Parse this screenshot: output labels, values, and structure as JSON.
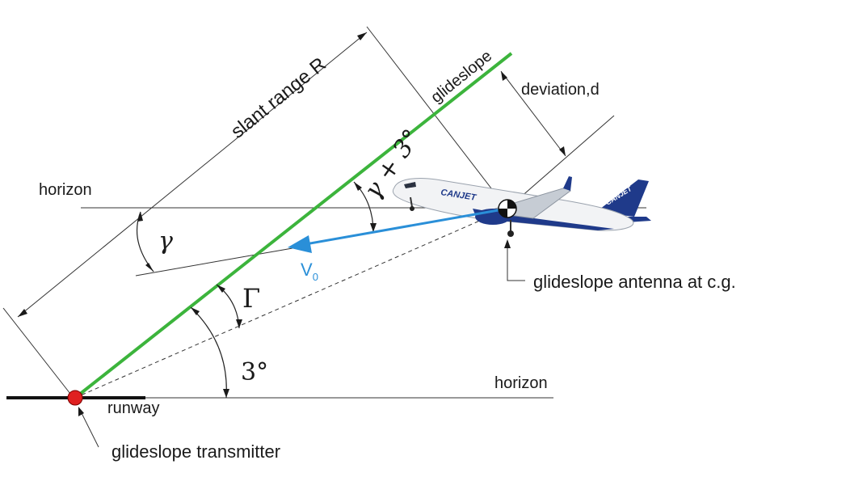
{
  "labels": {
    "slant_range": "slant range R",
    "glideslope": "glideslope",
    "deviation": "deviation,d",
    "horizon_upper": "horizon",
    "horizon_lower": "horizon",
    "runway": "runway",
    "transmitter": "glideslope transmitter",
    "antenna": "glideslope antenna at c.g.",
    "velocity_main": "V",
    "velocity_sub": "0",
    "gamma": "γ",
    "gamma_plus_3": "γ + 3°",
    "capital_gamma": "Γ",
    "three_deg": "3°"
  },
  "aircraft": {
    "livery_text": "CANJET",
    "tail_text": "CANJET"
  },
  "colors": {
    "glideslope_line": "#3cb43c",
    "velocity_vector": "#2a8fd8",
    "transmitter_dot": "#e02020",
    "livery_blue": "#1f3a8a"
  }
}
